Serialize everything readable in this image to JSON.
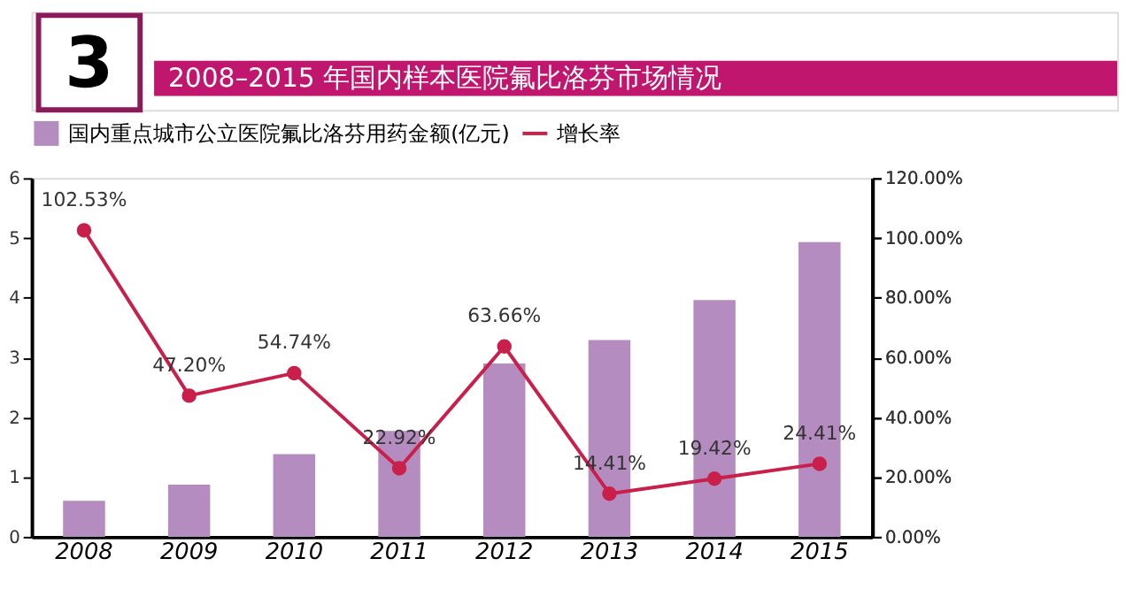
{
  "chart_data": {
    "type": "bar",
    "title": "2008–2015 年国内样本医院氟比洛芬市场情况",
    "annotations": [
      "3"
    ],
    "categories": [
      "2008",
      "2009",
      "2010",
      "2011",
      "2012",
      "2013",
      "2014",
      "2015"
    ],
    "series": [
      {
        "name": "国内重点城市公立医院氟比洛芬用药金额(亿元)",
        "color": "#b48cc0",
        "values": [
          0.6,
          0.87,
          1.38,
          1.77,
          2.9,
          3.29,
          3.96,
          4.93
        ]
      },
      {
        "name": "增长率",
        "type": "line",
        "axis": "y2",
        "color": "#c8204a",
        "values": [
          102.53,
          47.2,
          54.74,
          22.92,
          63.66,
          14.41,
          19.42,
          24.41
        ],
        "value_labels": [
          "102.53%",
          "47.20%",
          "54.74%",
          "22.92%",
          "63.66%",
          "14.41%",
          "19.42%",
          "24.41%"
        ]
      }
    ],
    "ylim": [
      0,
      6
    ],
    "yticks": [
      0,
      1,
      2,
      3,
      4,
      5,
      6
    ],
    "y2lim": [
      0,
      120
    ],
    "y2ticks": [
      {
        "value": 0,
        "label": "0.00%"
      },
      {
        "value": 20,
        "label": "20.00%"
      },
      {
        "value": 40,
        "label": "40.00%"
      },
      {
        "value": 60,
        "label": "60.00%"
      },
      {
        "value": 80,
        "label": "80.00%"
      },
      {
        "value": 100,
        "label": "100.00%"
      },
      {
        "value": 120,
        "label": "120.00%"
      }
    ],
    "grid": false,
    "legend": "top",
    "marker": "circle"
  }
}
